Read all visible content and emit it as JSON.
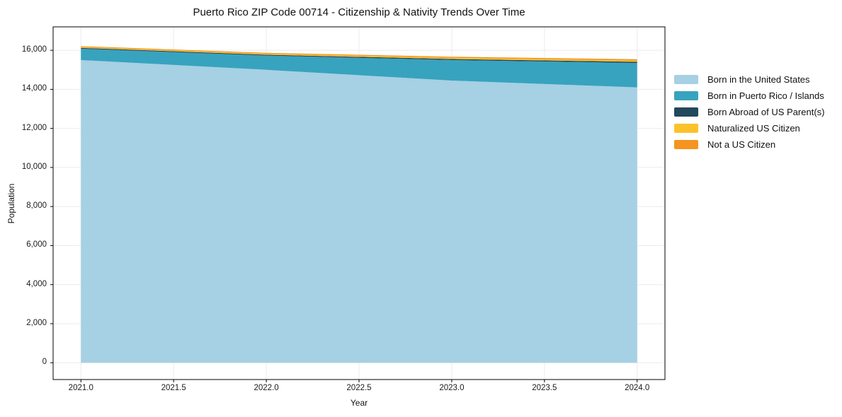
{
  "title": "Puerto Rico ZIP Code 00714 - Citizenship & Nativity Trends Over Time",
  "chart_data": {
    "type": "area",
    "stacked": true,
    "title": "Puerto Rico ZIP Code 00714 - Citizenship & Nativity Trends Over Time",
    "xlabel": "Year",
    "ylabel": "Population",
    "x": [
      2021,
      2022,
      2023,
      2024
    ],
    "series": [
      {
        "name": "Born in the United States",
        "color": "#a6d0e4",
        "values": [
          15500,
          15000,
          14450,
          14100
        ]
      },
      {
        "name": "Born in Puerto Rico / Islands",
        "color": "#38a3be",
        "values": [
          580,
          730,
          1050,
          1250
        ]
      },
      {
        "name": "Born Abroad of US Parent(s)",
        "color": "#24485c",
        "values": [
          45,
          45,
          55,
          60
        ]
      },
      {
        "name": "Naturalized US Citizen",
        "color": "#fcc22d",
        "values": [
          45,
          50,
          60,
          65
        ]
      },
      {
        "name": "Not a US Citizen",
        "color": "#f5941f",
        "values": [
          40,
          45,
          55,
          65
        ]
      }
    ],
    "x_ticks": [
      "2021.0",
      "2021.5",
      "2022.0",
      "2022.5",
      "2023.0",
      "2023.5",
      "2024.0"
    ],
    "y_ticks": [
      "0",
      "2,000",
      "4,000",
      "6,000",
      "8,000",
      "10,000",
      "12,000",
      "14,000",
      "16,000"
    ],
    "xlim": [
      2020.85,
      2024.15
    ],
    "ylim": [
      -860,
      17200
    ],
    "grid": true,
    "legend_position": "right",
    "colors": {
      "background": "#ffffff",
      "gridline": "#ebebeb",
      "axis": "#000000",
      "text": "#111111"
    }
  }
}
